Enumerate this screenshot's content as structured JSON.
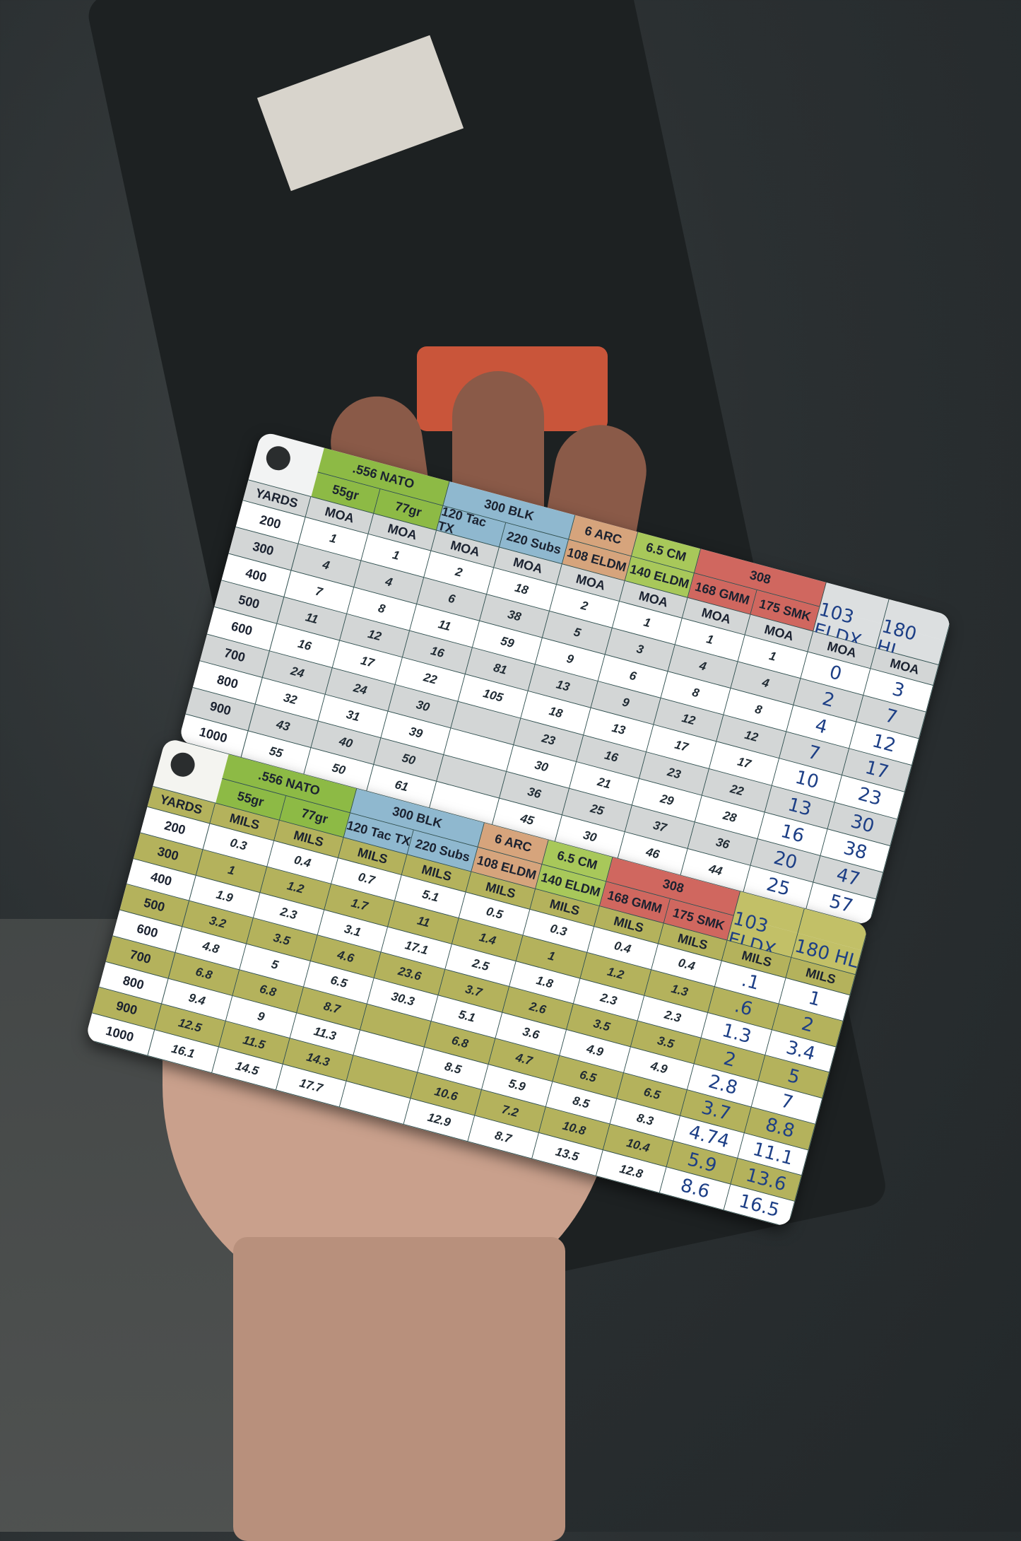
{
  "cards": [
    {
      "unit": "MOA",
      "yards_label": "YARDS",
      "row_colors": [
        "#ffffff",
        "#d3d6d6"
      ],
      "yards": [
        "200",
        "300",
        "400",
        "500",
        "600",
        "700",
        "800",
        "900",
        "1000"
      ],
      "groups": [
        {
          "name": ".556 NATO",
          "color": "#8dba45",
          "span": 2
        },
        {
          "name": "300 BLK",
          "color": "#8fb8cf",
          "span": 2
        },
        {
          "name": "6 ARC",
          "color": "#d6a47c",
          "span": 1
        },
        {
          "name": "6.5 CM",
          "color": "#a8c85a",
          "span": 1
        },
        {
          "name": "308",
          "color": "#d0675f",
          "span": 2
        },
        {
          "name": "",
          "color": "#dcdfe0",
          "span": 1
        },
        {
          "name": "",
          "color": "#dcdfe0",
          "span": 1
        }
      ],
      "columns": [
        {
          "load": "55gr",
          "handwritten": false,
          "values": [
            "1",
            "4",
            "7",
            "11",
            "16",
            "24",
            "32",
            "43",
            "55"
          ]
        },
        {
          "load": "77gr",
          "handwritten": false,
          "values": [
            "1",
            "4",
            "8",
            "12",
            "17",
            "24",
            "31",
            "40",
            "50"
          ]
        },
        {
          "load": "120 Tac TX",
          "handwritten": false,
          "values": [
            "2",
            "6",
            "11",
            "16",
            "22",
            "30",
            "39",
            "50",
            "61"
          ]
        },
        {
          "load": "220 Subs",
          "handwritten": false,
          "values": [
            "18",
            "38",
            "59",
            "81",
            "105",
            "",
            "",
            "",
            ""
          ]
        },
        {
          "load": "108 ELDM",
          "handwritten": false,
          "values": [
            "2",
            "5",
            "9",
            "13",
            "18",
            "23",
            "30",
            "36",
            "45"
          ]
        },
        {
          "load": "140 ELDM",
          "handwritten": false,
          "values": [
            "1",
            "3",
            "6",
            "9",
            "13",
            "16",
            "21",
            "25",
            "30"
          ]
        },
        {
          "load": "168 GMM",
          "handwritten": false,
          "values": [
            "1",
            "4",
            "8",
            "12",
            "17",
            "23",
            "29",
            "37",
            "46"
          ]
        },
        {
          "load": "175 SMK",
          "handwritten": false,
          "values": [
            "1",
            "4",
            "8",
            "12",
            "17",
            "22",
            "28",
            "36",
            "44"
          ]
        },
        {
          "load": "103 ELDX",
          "handwritten": true,
          "values": [
            "0",
            "2",
            "4",
            "7",
            "10",
            "13",
            "16",
            "20",
            "25"
          ]
        },
        {
          "load": "180 HL",
          "handwritten": true,
          "values": [
            "3",
            "7",
            "12",
            "17",
            "23",
            "30",
            "38",
            "47",
            "57"
          ]
        }
      ]
    },
    {
      "unit": "MILS",
      "yards_label": "YARDS",
      "row_colors": [
        "#ffffff",
        "#b4b25c"
      ],
      "yards": [
        "200",
        "300",
        "400",
        "500",
        "600",
        "700",
        "800",
        "900",
        "1000"
      ],
      "groups": [
        {
          "name": ".556 NATO",
          "color": "#8dba45",
          "span": 2
        },
        {
          "name": "300 BLK",
          "color": "#8fb8cf",
          "span": 2
        },
        {
          "name": "6 ARC",
          "color": "#d6a47c",
          "span": 1
        },
        {
          "name": "6.5 CM",
          "color": "#a8c85a",
          "span": 1
        },
        {
          "name": "308",
          "color": "#d0675f",
          "span": 2
        },
        {
          "name": "",
          "color": "#c2c067",
          "span": 1
        },
        {
          "name": "",
          "color": "#c2c067",
          "span": 1
        }
      ],
      "columns": [
        {
          "load": "55gr",
          "handwritten": false,
          "values": [
            "0.3",
            "1",
            "1.9",
            "3.2",
            "4.8",
            "6.8",
            "9.4",
            "12.5",
            "16.1"
          ]
        },
        {
          "load": "77gr",
          "handwritten": false,
          "values": [
            "0.4",
            "1.2",
            "2.3",
            "3.5",
            "5",
            "6.8",
            "9",
            "11.5",
            "14.5"
          ]
        },
        {
          "load": "120 Tac TX",
          "handwritten": false,
          "values": [
            "0.7",
            "1.7",
            "3.1",
            "4.6",
            "6.5",
            "8.7",
            "11.3",
            "14.3",
            "17.7"
          ]
        },
        {
          "load": "220 Subs",
          "handwritten": false,
          "values": [
            "5.1",
            "11",
            "17.1",
            "23.6",
            "30.3",
            "",
            "",
            "",
            ""
          ]
        },
        {
          "load": "108 ELDM",
          "handwritten": false,
          "values": [
            "0.5",
            "1.4",
            "2.5",
            "3.7",
            "5.1",
            "6.8",
            "8.5",
            "10.6",
            "12.9"
          ]
        },
        {
          "load": "140 ELDM",
          "handwritten": false,
          "values": [
            "0.3",
            "1",
            "1.8",
            "2.6",
            "3.6",
            "4.7",
            "5.9",
            "7.2",
            "8.7"
          ]
        },
        {
          "load": "168 GMM",
          "handwritten": false,
          "values": [
            "0.4",
            "1.2",
            "2.3",
            "3.5",
            "4.9",
            "6.5",
            "8.5",
            "10.8",
            "13.5"
          ]
        },
        {
          "load": "175 SMK",
          "handwritten": false,
          "values": [
            "0.4",
            "1.3",
            "2.3",
            "3.5",
            "4.9",
            "6.5",
            "8.3",
            "10.4",
            "12.8"
          ]
        },
        {
          "load": "103 ELDX",
          "handwritten": true,
          "values": [
            ".1",
            ".6",
            "1.3",
            "2",
            "2.8",
            "3.7",
            "4.74",
            "5.9",
            "8.6"
          ]
        },
        {
          "load": "180 HL",
          "handwritten": true,
          "values": [
            "1",
            "2",
            "3.4",
            "5",
            "7",
            "8.8",
            "11.1",
            "13.6",
            "16.5"
          ]
        }
      ]
    }
  ]
}
